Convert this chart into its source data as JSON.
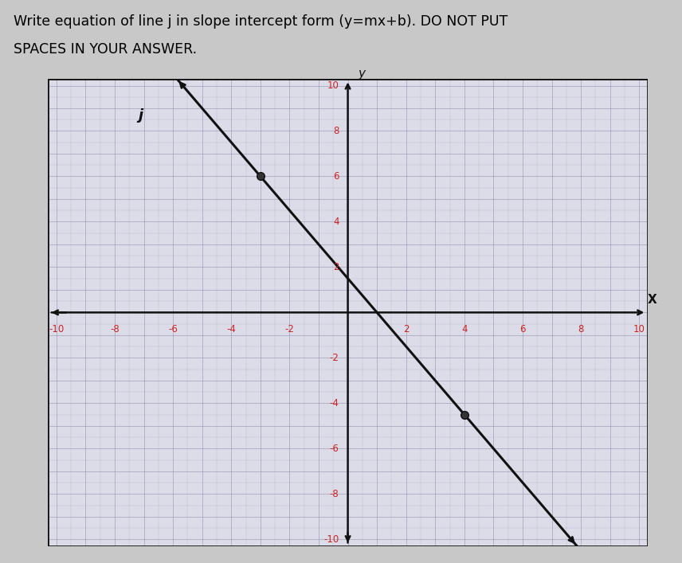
{
  "title_line1": "Write equation of line j in slope intercept form (y=mx+b). DO NOT PUT",
  "title_line2": "SPACES IN YOUR ANSWER.",
  "title_fontsize": 12.5,
  "bg_color": "#c8c8c8",
  "plot_bg_color": "#dcdce8",
  "grid_minor_color": "#9090b0",
  "grid_major_color": "#8888aa",
  "axis_color": "#111111",
  "line_color": "#111111",
  "tick_label_color": "#cc2222",
  "line_label": "j",
  "slope": -1.5,
  "intercept": 1.5,
  "x_min": -10,
  "x_max": 10,
  "y_min": -10,
  "y_max": 10,
  "dot_points": [
    [
      -3,
      6
    ],
    [
      4,
      -4.5
    ]
  ],
  "xlabel": "X",
  "ylabel": "y",
  "tick_values": [
    -10,
    -8,
    -6,
    -4,
    -2,
    2,
    4,
    6,
    8,
    10
  ],
  "figsize": [
    8.56,
    7.07
  ],
  "dpi": 100
}
